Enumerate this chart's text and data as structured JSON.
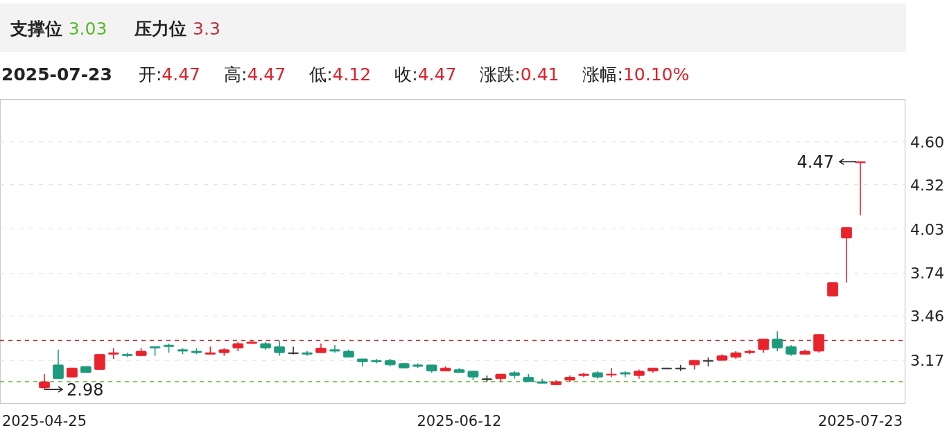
{
  "chart_data": {
    "type": "candlestick",
    "categories": [
      "2025-04-25",
      null,
      null,
      null,
      null,
      null,
      null,
      null,
      null,
      null,
      null,
      null,
      null,
      null,
      null,
      null,
      null,
      null,
      null,
      null,
      null,
      null,
      null,
      null,
      null,
      null,
      null,
      null,
      null,
      null,
      "2025-06-12",
      null,
      null,
      null,
      null,
      null,
      null,
      null,
      null,
      null,
      null,
      null,
      null,
      null,
      null,
      null,
      null,
      null,
      null,
      null,
      null,
      null,
      null,
      null,
      null,
      null,
      null,
      null,
      null,
      "2025-07-23"
    ],
    "ohlc": [
      [
        2.99,
        3.08,
        2.98,
        3.03
      ],
      [
        3.14,
        3.24,
        3.05,
        3.05
      ],
      [
        3.06,
        3.12,
        3.06,
        3.12
      ],
      [
        3.13,
        3.13,
        3.09,
        3.09
      ],
      [
        3.11,
        3.21,
        3.11,
        3.21
      ],
      [
        3.21,
        3.25,
        3.18,
        3.22
      ],
      [
        3.21,
        3.22,
        3.19,
        3.2
      ],
      [
        3.2,
        3.25,
        3.2,
        3.23
      ],
      [
        3.26,
        3.26,
        3.2,
        3.25
      ],
      [
        3.27,
        3.28,
        3.22,
        3.26
      ],
      [
        3.24,
        3.25,
        3.21,
        3.23
      ],
      [
        3.23,
        3.25,
        3.21,
        3.22
      ],
      [
        3.21,
        3.26,
        3.21,
        3.22
      ],
      [
        3.22,
        3.25,
        3.2,
        3.24
      ],
      [
        3.25,
        3.29,
        3.23,
        3.28
      ],
      [
        3.28,
        3.3,
        3.28,
        3.29
      ],
      [
        3.28,
        3.29,
        3.24,
        3.25
      ],
      [
        3.26,
        3.3,
        3.2,
        3.22
      ],
      [
        3.22,
        3.26,
        3.21,
        3.22
      ],
      [
        3.22,
        3.23,
        3.2,
        3.21
      ],
      [
        3.22,
        3.28,
        3.22,
        3.25
      ],
      [
        3.24,
        3.27,
        3.22,
        3.23
      ],
      [
        3.23,
        3.24,
        3.19,
        3.19
      ],
      [
        3.18,
        3.18,
        3.13,
        3.16
      ],
      [
        3.17,
        3.18,
        3.15,
        3.16
      ],
      [
        3.17,
        3.18,
        3.13,
        3.14
      ],
      [
        3.15,
        3.15,
        3.12,
        3.12
      ],
      [
        3.14,
        3.15,
        3.12,
        3.13
      ],
      [
        3.14,
        3.14,
        3.09,
        3.1
      ],
      [
        3.1,
        3.13,
        3.1,
        3.12
      ],
      [
        3.11,
        3.12,
        3.09,
        3.09
      ],
      [
        3.1,
        3.1,
        3.04,
        3.06
      ],
      [
        3.05,
        3.07,
        3.03,
        3.05
      ],
      [
        3.05,
        3.08,
        3.03,
        3.08
      ],
      [
        3.09,
        3.1,
        3.05,
        3.07
      ],
      [
        3.06,
        3.08,
        3.03,
        3.03
      ],
      [
        3.03,
        3.05,
        3.02,
        3.02
      ],
      [
        3.01,
        3.04,
        3.01,
        3.03
      ],
      [
        3.04,
        3.07,
        3.03,
        3.06
      ],
      [
        3.07,
        3.09,
        3.06,
        3.08
      ],
      [
        3.09,
        3.1,
        3.05,
        3.06
      ],
      [
        3.08,
        3.12,
        3.06,
        3.08
      ],
      [
        3.09,
        3.1,
        3.06,
        3.08
      ],
      [
        3.07,
        3.11,
        3.05,
        3.1
      ],
      [
        3.1,
        3.12,
        3.09,
        3.12
      ],
      [
        3.12,
        3.12,
        3.12,
        3.12
      ],
      [
        3.12,
        3.14,
        3.1,
        3.12
      ],
      [
        3.14,
        3.17,
        3.11,
        3.17
      ],
      [
        3.17,
        3.19,
        3.13,
        3.17
      ],
      [
        3.17,
        3.21,
        3.17,
        3.2
      ],
      [
        3.19,
        3.23,
        3.18,
        3.22
      ],
      [
        3.22,
        3.24,
        3.21,
        3.23
      ],
      [
        3.24,
        3.31,
        3.22,
        3.31
      ],
      [
        3.31,
        3.36,
        3.23,
        3.25
      ],
      [
        3.26,
        3.27,
        3.2,
        3.21
      ],
      [
        3.21,
        3.24,
        3.21,
        3.23
      ],
      [
        3.23,
        3.34,
        3.22,
        3.34
      ],
      [
        3.59,
        3.68,
        3.59,
        3.68
      ],
      [
        3.97,
        4.04,
        3.68,
        4.04
      ],
      [
        4.47,
        4.47,
        4.12,
        4.47
      ]
    ],
    "colors": [
      "#e8232c",
      "#1d9a7c",
      "#e8232c",
      "#1d9a7c",
      "#e8232c",
      "#e8232c",
      "#1d9a7c",
      "#e8232c",
      "#1d9a7c",
      "#1d9a7c",
      "#1d9a7c",
      "#1d9a7c",
      "#e8232c",
      "#e8232c",
      "#e8232c",
      "#e8232c",
      "#1d9a7c",
      "#1d9a7c",
      "#333333",
      "#1d9a7c",
      "#e8232c",
      "#1d9a7c",
      "#1d9a7c",
      "#1d9a7c",
      "#1d9a7c",
      "#1d9a7c",
      "#1d9a7c",
      "#1d9a7c",
      "#1d9a7c",
      "#e8232c",
      "#1d9a7c",
      "#1d9a7c",
      "#333333",
      "#e8232c",
      "#1d9a7c",
      "#1d9a7c",
      "#1d9a7c",
      "#e8232c",
      "#e8232c",
      "#e8232c",
      "#1d9a7c",
      "#e8232c",
      "#1d9a7c",
      "#e8232c",
      "#e8232c",
      "#333333",
      "#333333",
      "#e8232c",
      "#333333",
      "#e8232c",
      "#e8232c",
      "#e8232c",
      "#e8232c",
      "#1d9a7c",
      "#1d9a7c",
      "#e8232c",
      "#e8232c",
      "#e8232c",
      "#e8232c",
      "#e8232c"
    ],
    "ylim": [
      2.89,
      4.88
    ],
    "yticks": [
      3.17,
      3.46,
      3.74,
      4.03,
      4.32,
      {
        "value": 4.6,
        "label": "4.60"
      }
    ],
    "grid": "y",
    "ref_lines": [
      {
        "axis": "y",
        "value": 3.03,
        "color": "#5bb82b",
        "line_style": "dashed"
      },
      {
        "axis": "y",
        "value": 3.3,
        "color": "#b8343a",
        "line_style": "dashed"
      }
    ],
    "annotations": [
      {
        "text": "2.98",
        "x": "2025-04-25",
        "y": 2.98
      },
      {
        "text": "4.47",
        "x": "2025-07-23",
        "y": 4.47
      },
      "支撑位 3.03",
      "压力位 3.3",
      "2025-07-23",
      "开:4.47",
      "高:4.47",
      "低:4.12",
      "收:4.47",
      "涨跌:0.41",
      "涨幅:10.10%"
    ]
  }
}
